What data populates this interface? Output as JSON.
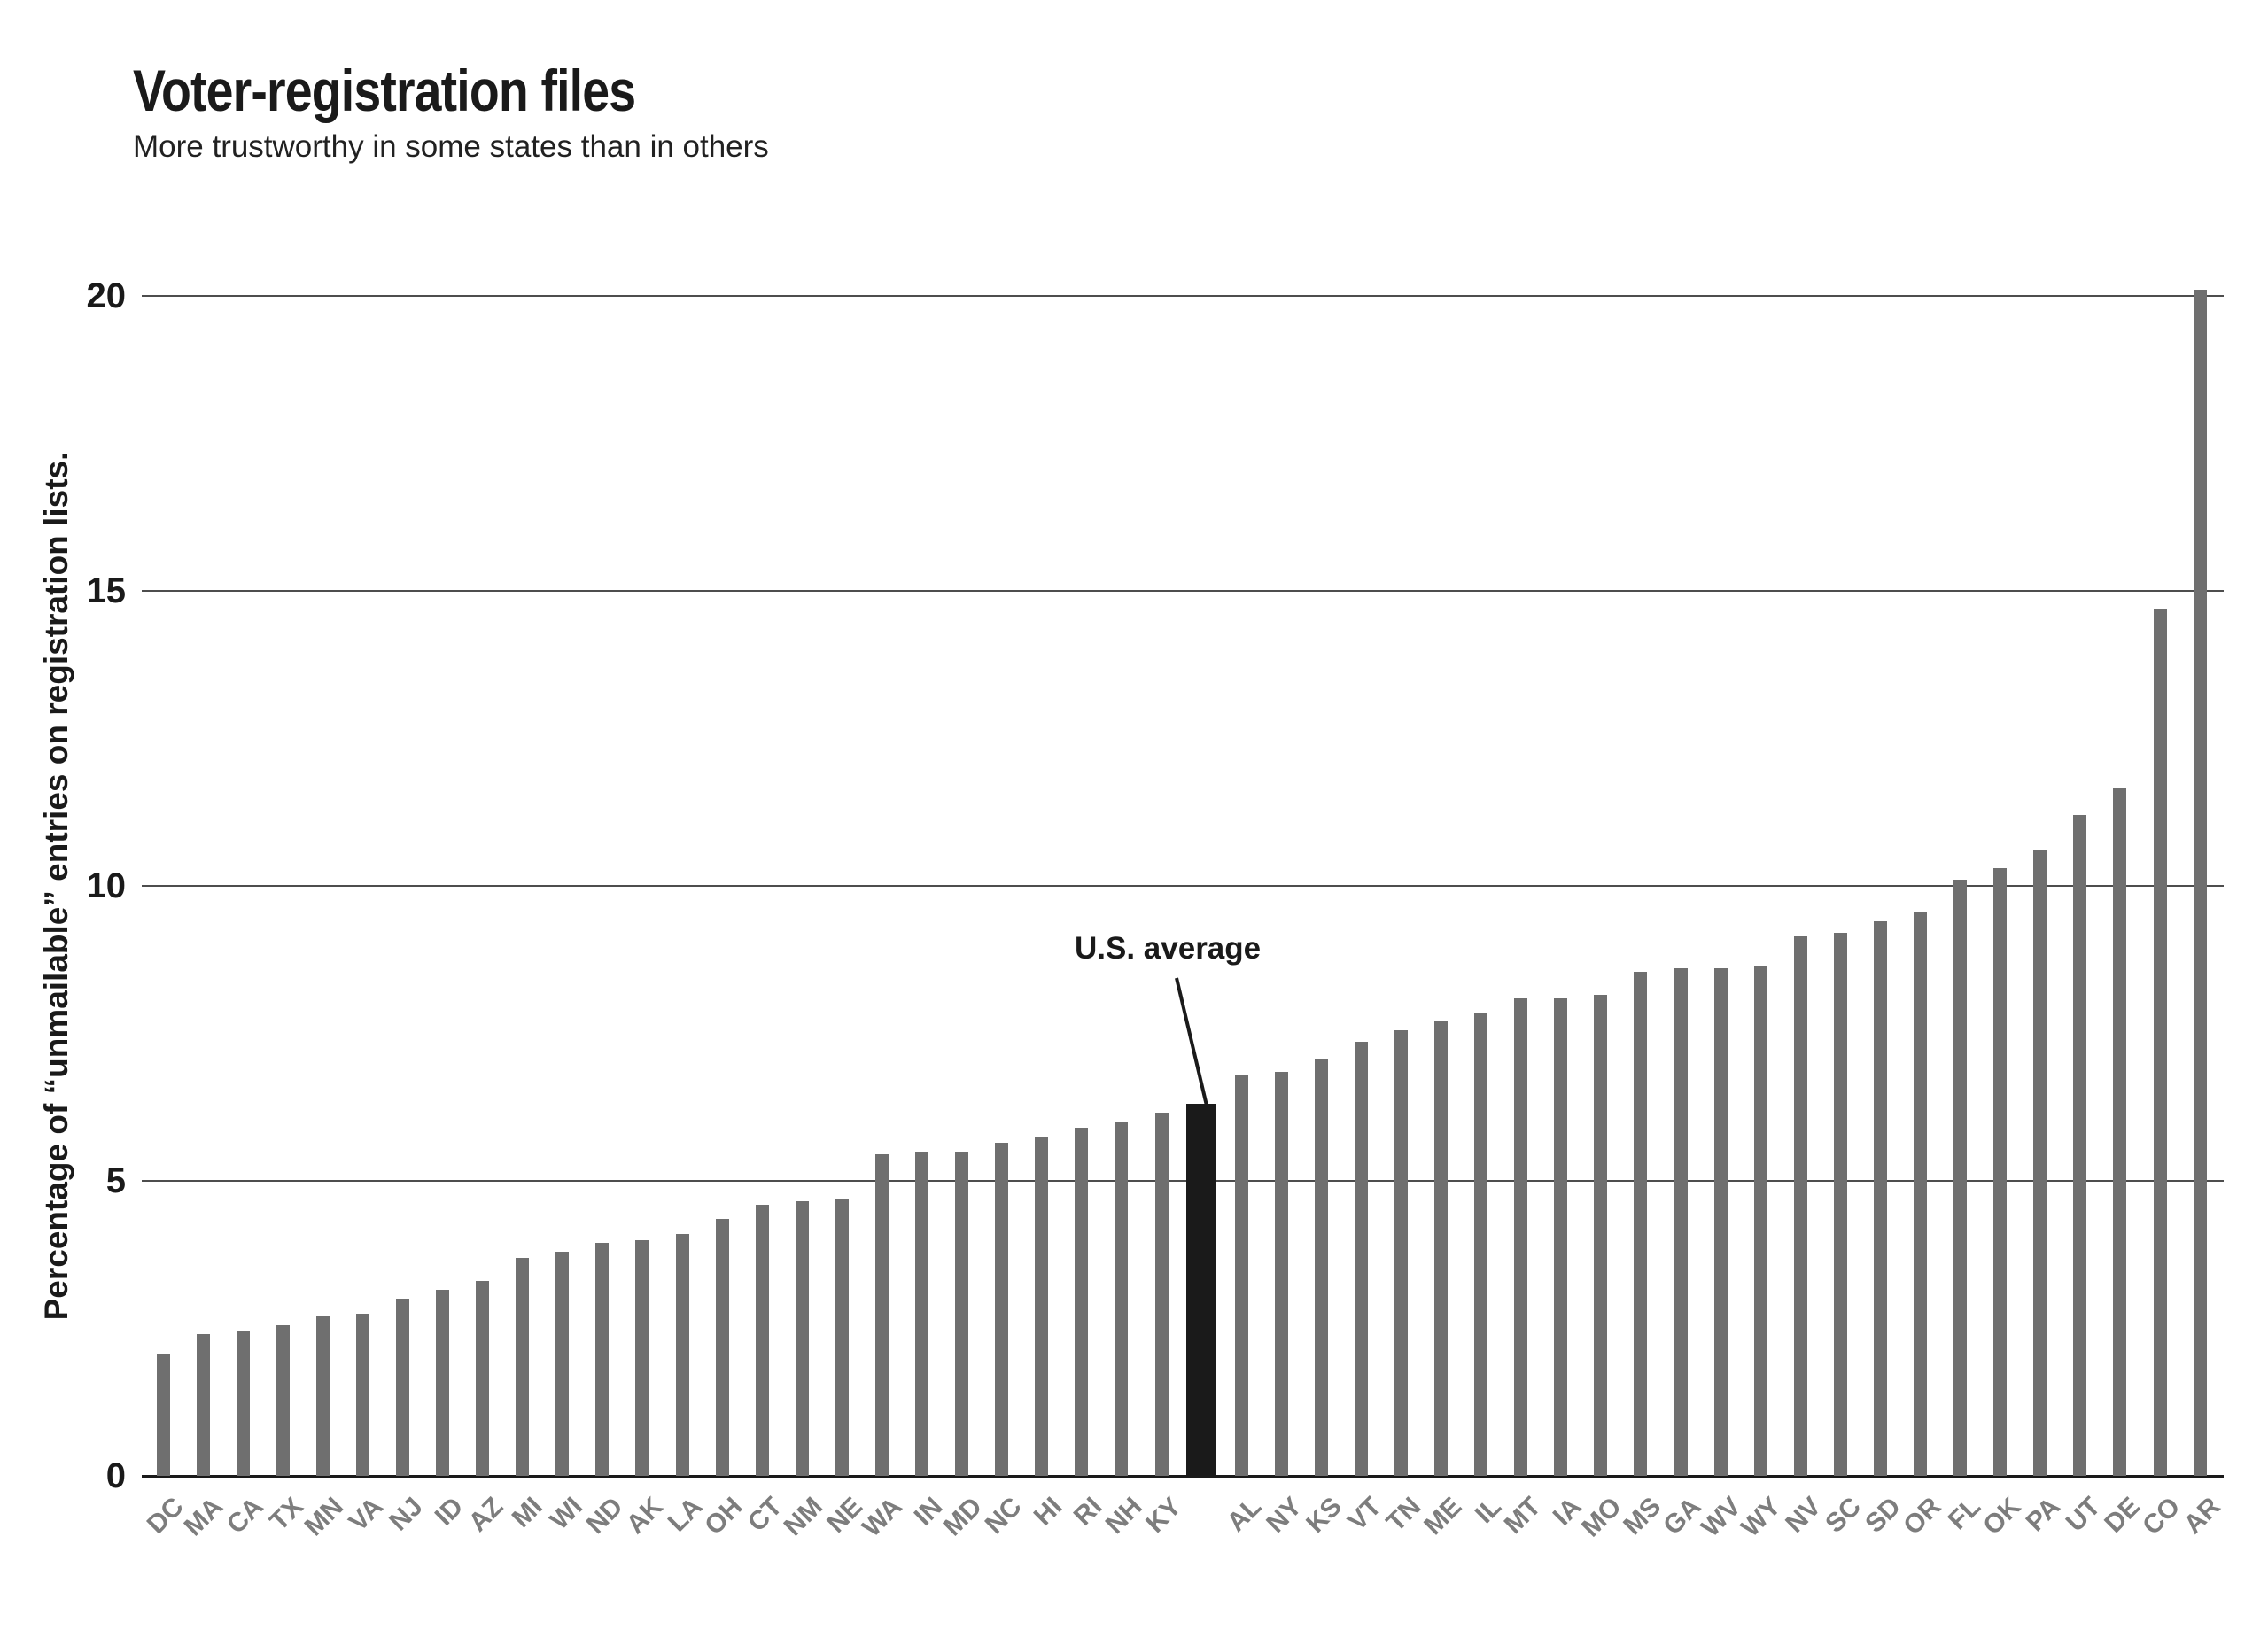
{
  "header": {
    "title": "Voter-registration files",
    "subtitle": "More trustworthy in some states than in others"
  },
  "chart_data": {
    "type": "bar",
    "title": "Voter-registration files",
    "subtitle": "More trustworthy in some states than in others",
    "ylabel": "Percentage of “unmailable” entries on registration lists.",
    "xlabel": "",
    "ylim": [
      0,
      20
    ],
    "yticks": [
      0,
      5,
      10,
      15,
      20
    ],
    "grid": "horizontal",
    "legend": "none",
    "annotation": {
      "label": "U.S. average",
      "points_to": "U.S. average",
      "value": 6.3
    },
    "highlight_index": 26,
    "categories": [
      "DC",
      "MA",
      "CA",
      "TX",
      "MN",
      "VA",
      "NJ",
      "ID",
      "AZ",
      "MI",
      "WI",
      "ND",
      "AK",
      "LA",
      "OH",
      "CT",
      "NM",
      "NE",
      "WA",
      "IN",
      "MD",
      "NC",
      "HI",
      "RI",
      "NH",
      "KY",
      "U.S. average",
      "AL",
      "NY",
      "KS",
      "VT",
      "TN",
      "ME",
      "IL",
      "MT",
      "IA",
      "MO",
      "MS",
      "GA",
      "WV",
      "WY",
      "NV",
      "SC",
      "SD",
      "OR",
      "FL",
      "OK",
      "PA",
      "UT",
      "DE",
      "CO",
      "AR"
    ],
    "values": [
      2.05,
      2.4,
      2.45,
      2.55,
      2.7,
      2.75,
      3.0,
      3.15,
      3.3,
      3.7,
      3.8,
      3.95,
      4.0,
      4.1,
      4.35,
      4.6,
      4.65,
      4.7,
      5.45,
      5.5,
      5.5,
      5.65,
      5.75,
      5.9,
      6.0,
      6.15,
      6.3,
      6.8,
      6.85,
      7.05,
      7.35,
      7.55,
      7.7,
      7.85,
      8.1,
      8.1,
      8.15,
      8.55,
      8.6,
      8.6,
      8.65,
      9.15,
      9.2,
      9.4,
      9.55,
      10.1,
      10.3,
      10.6,
      11.2,
      11.65,
      14.7,
      20.1
    ],
    "colors": {
      "bar": "#6f6f6f",
      "highlight_bar": "#1a1a1a",
      "gridline": "#4d4d4d",
      "axis": "#1a1a1a",
      "y_tick_label": "#1a1a1a",
      "x_tick_label": "#7d7d7d"
    }
  }
}
